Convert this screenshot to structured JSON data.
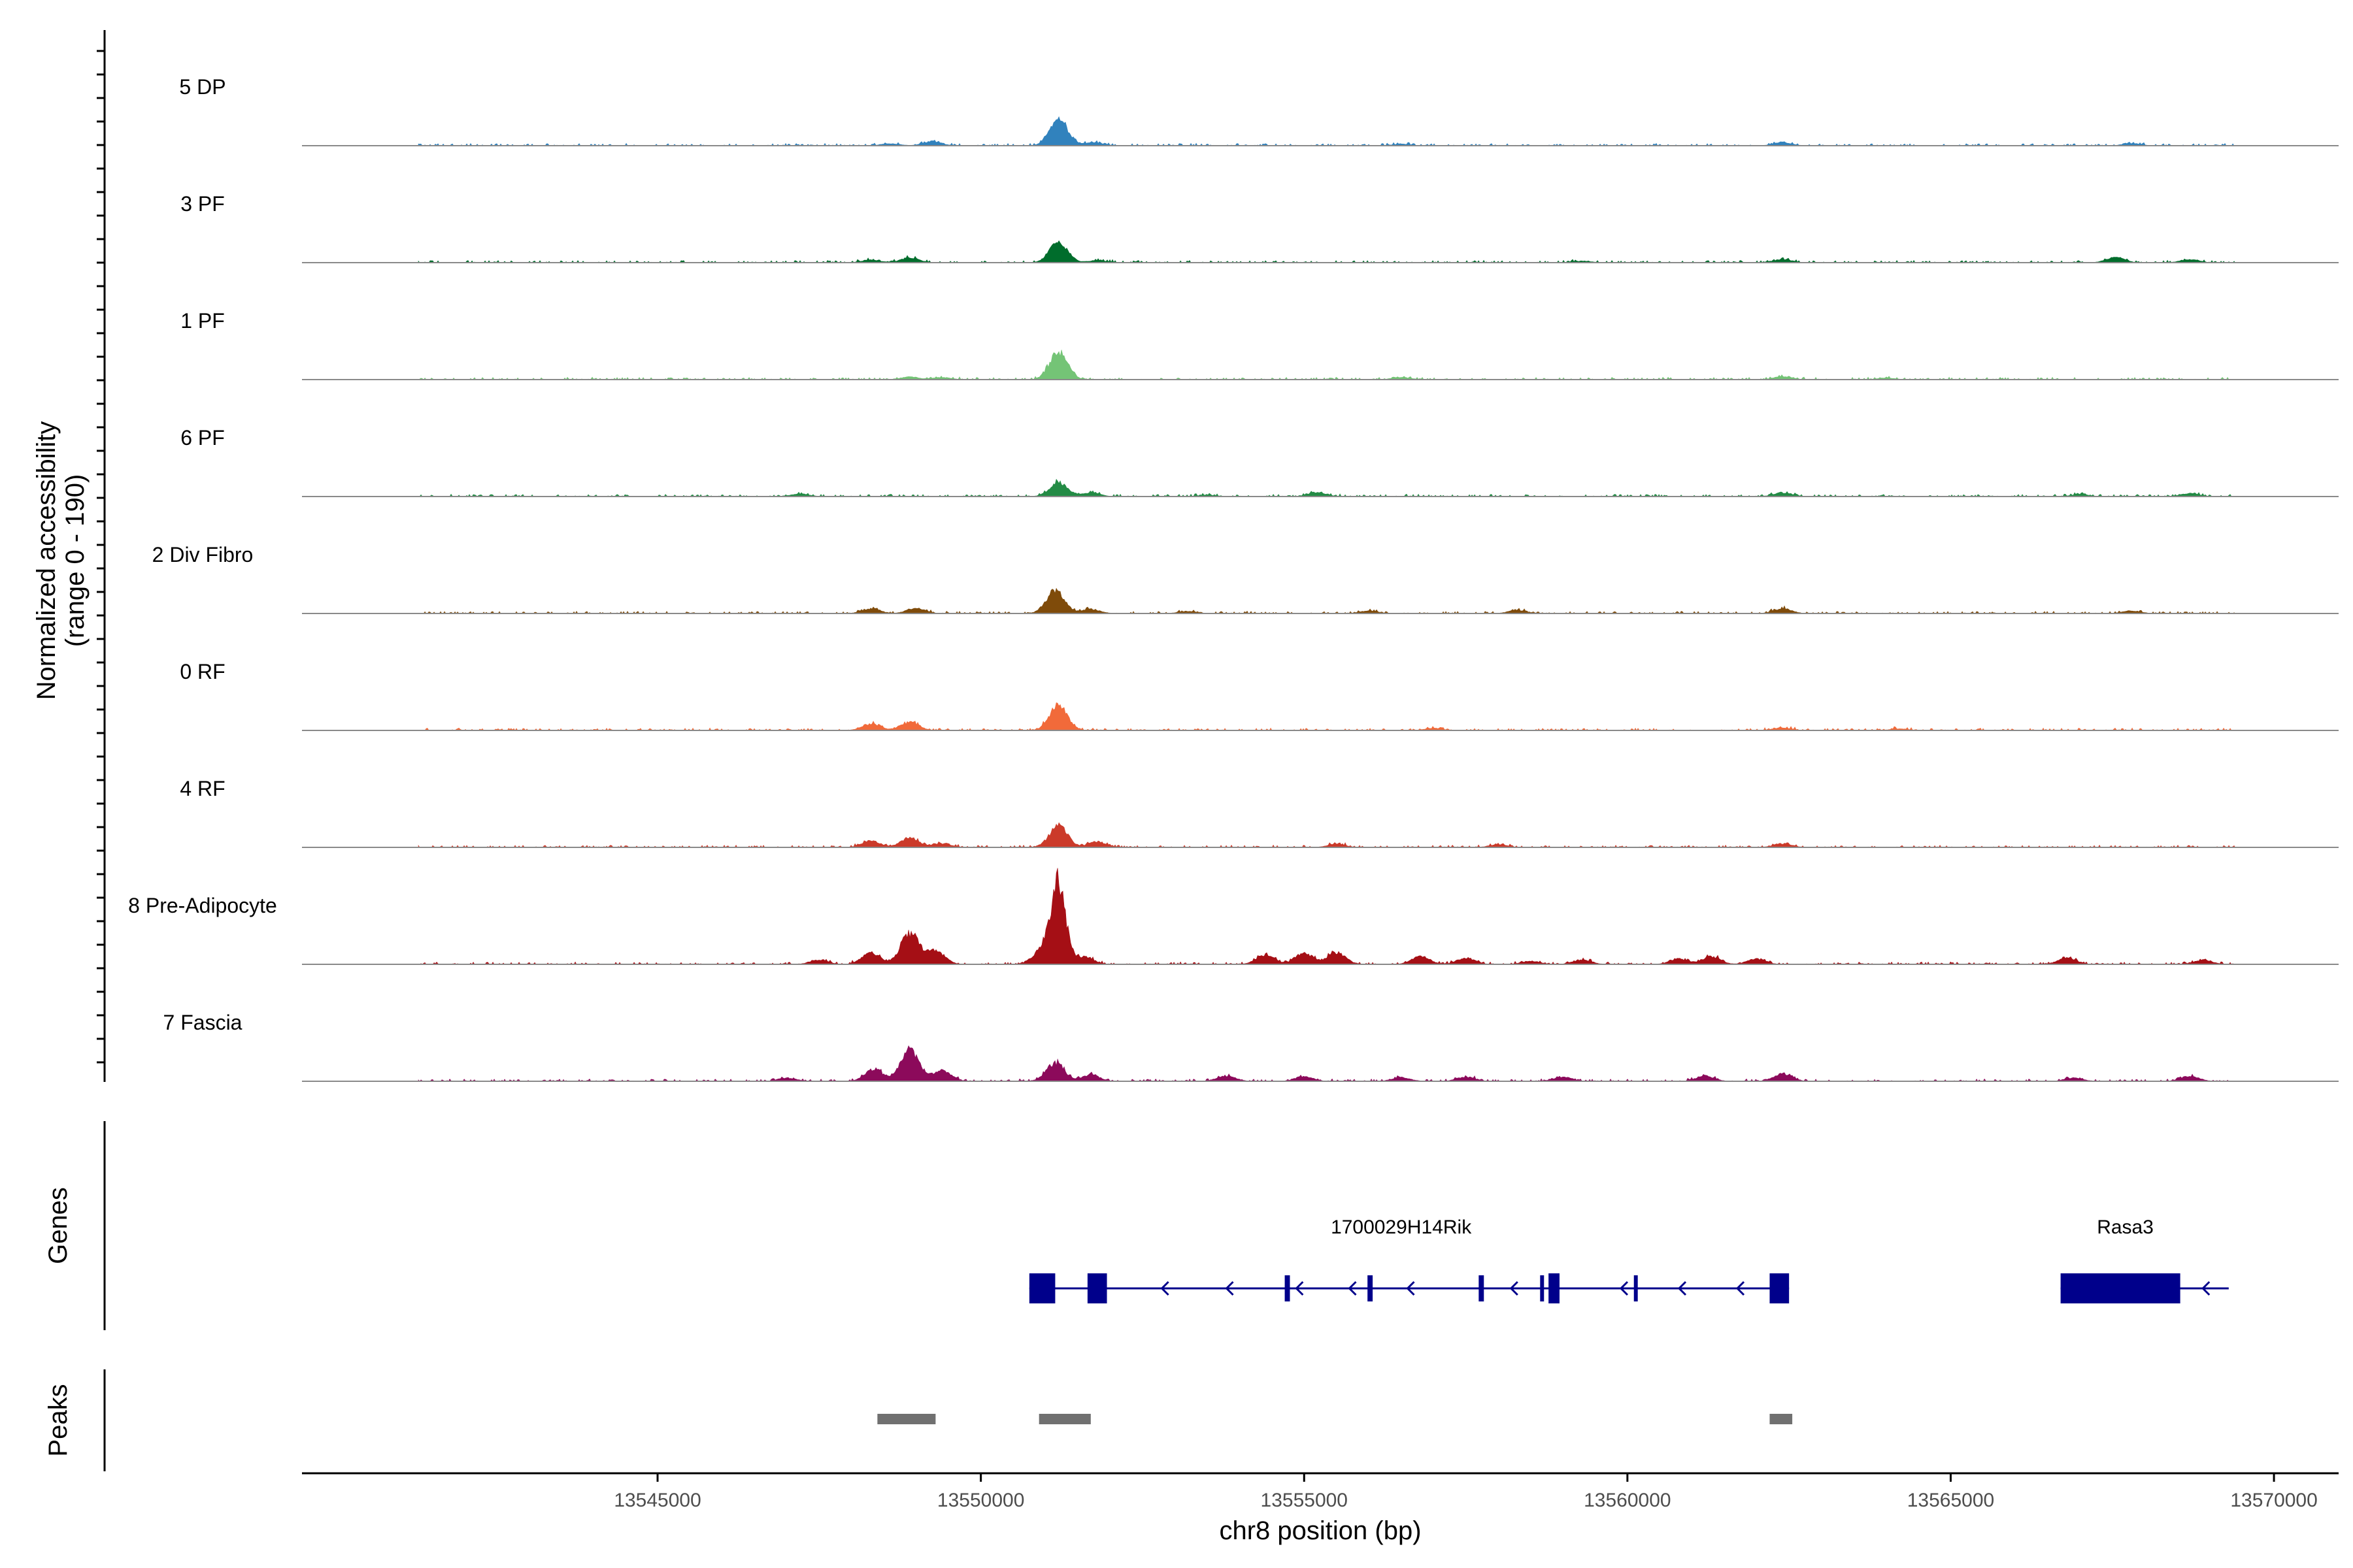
{
  "chart_data": {
    "type": "area",
    "title": "",
    "y_title_line1": "Normalized accessibility",
    "y_title_line2": "(range 0 - 190)",
    "x_title": "chr8 position (bp)",
    "x_range": [
      13539500,
      13571000
    ],
    "x_ticks": [
      13545000,
      13550000,
      13555000,
      13560000,
      13565000,
      13570000
    ],
    "x_tick_labels": [
      "13545000",
      "13550000",
      "13555000",
      "13560000",
      "13565000",
      "13570000"
    ],
    "y_max": 190,
    "tracks": [
      {
        "name": "5 DP",
        "color": "#3182bd",
        "peaks": [
          [
            13551200,
            50
          ],
          [
            13549250,
            8
          ],
          [
            13551750,
            6
          ],
          [
            13562400,
            6
          ],
          [
            13567800,
            4
          ],
          [
            13548600,
            4
          ],
          [
            13556500,
            3
          ]
        ]
      },
      {
        "name": "3 PF",
        "color": "#006d2c",
        "peaks": [
          [
            13551200,
            38
          ],
          [
            13548900,
            9
          ],
          [
            13548300,
            5
          ],
          [
            13562400,
            6
          ],
          [
            13567550,
            10
          ],
          [
            13568700,
            6
          ],
          [
            13551800,
            4
          ],
          [
            13559300,
            3
          ]
        ]
      },
      {
        "name": "1 PF",
        "color": "#74c476",
        "peaks": [
          [
            13551200,
            50
          ],
          [
            13548900,
            5
          ],
          [
            13549400,
            4
          ],
          [
            13562400,
            6
          ],
          [
            13556500,
            4
          ],
          [
            13564000,
            3
          ]
        ]
      },
      {
        "name": "6 PF",
        "color": "#238b45",
        "peaks": [
          [
            13551200,
            26
          ],
          [
            13551700,
            7
          ],
          [
            13555200,
            8
          ],
          [
            13547200,
            5
          ],
          [
            13562400,
            7
          ],
          [
            13568700,
            6
          ],
          [
            13567000,
            4
          ],
          [
            13553500,
            3
          ]
        ]
      },
      {
        "name": "2 Div Fibro",
        "color": "#7f4b0a",
        "peaks": [
          [
            13551150,
            42
          ],
          [
            13548300,
            9
          ],
          [
            13549000,
            10
          ],
          [
            13551700,
            8
          ],
          [
            13562400,
            9
          ],
          [
            13558300,
            6
          ],
          [
            13556000,
            5
          ],
          [
            13567800,
            5
          ],
          [
            13553200,
            4
          ]
        ]
      },
      {
        "name": "0 RF",
        "color": "#f16a3a",
        "peaks": [
          [
            13551200,
            46
          ],
          [
            13548300,
            12
          ],
          [
            13548900,
            15
          ],
          [
            13562400,
            5
          ],
          [
            13557000,
            4
          ],
          [
            13564200,
            3
          ]
        ]
      },
      {
        "name": "4 RF",
        "color": "#cb3a2a",
        "peaks": [
          [
            13551200,
            40
          ],
          [
            13548300,
            12
          ],
          [
            13548900,
            18
          ],
          [
            13549400,
            7
          ],
          [
            13551800,
            10
          ],
          [
            13562400,
            7
          ],
          [
            13555500,
            6
          ],
          [
            13558000,
            5
          ]
        ]
      },
      {
        "name": "8 Pre-Adipocyte",
        "color": "#a50f15",
        "peaks": [
          [
            13551200,
            150
          ],
          [
            13548900,
            58
          ],
          [
            13548300,
            22
          ],
          [
            13549300,
            25
          ],
          [
            13550950,
            28
          ],
          [
            13551600,
            14
          ],
          [
            13554400,
            18
          ],
          [
            13555000,
            20
          ],
          [
            13555500,
            22
          ],
          [
            13556800,
            15
          ],
          [
            13557500,
            12
          ],
          [
            13561300,
            14
          ],
          [
            13566800,
            12
          ],
          [
            13562000,
            10
          ],
          [
            13560800,
            10
          ],
          [
            13559300,
            8
          ],
          [
            13547500,
            8
          ],
          [
            13568900,
            8
          ],
          [
            13558500,
            6
          ]
        ]
      },
      {
        "name": "7 Fascia",
        "color": "#8c0a5b",
        "peaks": [
          [
            13548900,
            58
          ],
          [
            13548350,
            22
          ],
          [
            13549400,
            20
          ],
          [
            13551150,
            34
          ],
          [
            13551700,
            12
          ],
          [
            13553800,
            10
          ],
          [
            13555000,
            9
          ],
          [
            13557500,
            8
          ],
          [
            13562400,
            14
          ],
          [
            13561200,
            10
          ],
          [
            13559000,
            8
          ],
          [
            13568700,
            10
          ],
          [
            13566900,
            6
          ],
          [
            13547000,
            6
          ],
          [
            13556500,
            7
          ]
        ]
      }
    ],
    "genes": [
      {
        "name": "1700029H14Rik",
        "label_pos": 13556500,
        "start": 13550750,
        "end": 13562500,
        "strand": "-",
        "exons": [
          [
            13550750,
            13551150
          ],
          [
            13551650,
            13551950
          ],
          [
            13554700,
            13554780
          ],
          [
            13555980,
            13556060
          ],
          [
            13557700,
            13557780
          ],
          [
            13558650,
            13558710
          ],
          [
            13558780,
            13558950
          ],
          [
            13560100,
            13560160
          ],
          [
            13562200,
            13562500
          ]
        ],
        "arrows": [
          13552800,
          13553800,
          13554880,
          13555700,
          13556600,
          13558200,
          13559900,
          13560800,
          13561700
        ]
      },
      {
        "name": "Rasa3",
        "label_pos": 13567700,
        "start": 13566700,
        "end": 13569300,
        "strand": "-",
        "exons": [
          [
            13566700,
            13568550
          ]
        ],
        "arrows": [
          13568900
        ]
      }
    ],
    "genes_track_title": "Genes",
    "peaks_track_title": "Peaks",
    "peak_regions": [
      [
        13548400,
        13549300
      ],
      [
        13550900,
        13551700
      ],
      [
        13562200,
        13562550
      ]
    ]
  }
}
